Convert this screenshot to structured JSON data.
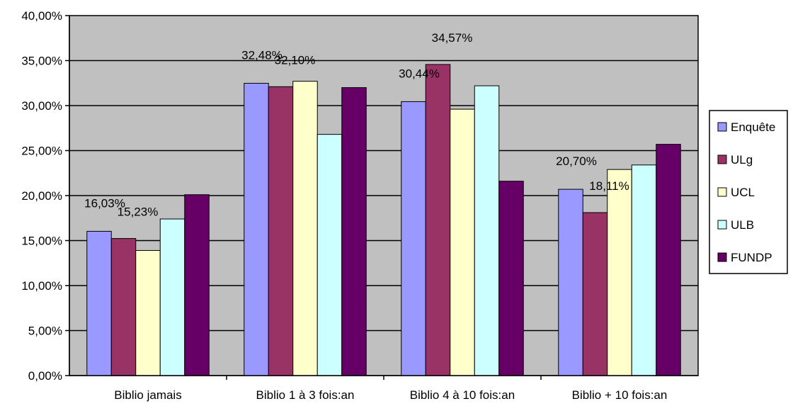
{
  "chart_data": {
    "type": "bar",
    "categories": [
      "Biblio jamais",
      "Biblio 1 à 3 fois:an",
      "Biblio 4 à 10 fois:an",
      "Biblio + 10 fois:an"
    ],
    "series": [
      {
        "name": "Enquête",
        "color": "#9999ff",
        "values": [
          16.03,
          32.48,
          30.44,
          20.7
        ]
      },
      {
        "name": "ULg",
        "color": "#993366",
        "values": [
          15.23,
          32.1,
          34.57,
          18.11
        ]
      },
      {
        "name": "UCL",
        "color": "#ffffcc",
        "values": [
          13.9,
          32.7,
          29.6,
          22.9
        ]
      },
      {
        "name": "ULB",
        "color": "#ccffff",
        "values": [
          17.4,
          26.8,
          32.2,
          23.4
        ]
      },
      {
        "name": "FUNDP",
        "color": "#660066",
        "values": [
          20.1,
          32.0,
          21.6,
          25.7
        ]
      }
    ],
    "data_labels": [
      {
        "series": "Enquête",
        "category": "Biblio jamais",
        "text": "16,03%"
      },
      {
        "series": "ULg",
        "category": "Biblio jamais",
        "text": "15,23%"
      },
      {
        "series": "Enquête",
        "category": "Biblio 1 à 3 fois:an",
        "text": "32,48%"
      },
      {
        "series": "ULg",
        "category": "Biblio 1 à 3 fois:an",
        "text": "32,10%"
      },
      {
        "series": "Enquête",
        "category": "Biblio 4 à 10 fois:an",
        "text": "30,44%"
      },
      {
        "series": "ULg",
        "category": "Biblio 4 à 10 fois:an",
        "text": "34,57%"
      },
      {
        "series": "Enquête",
        "category": "Biblio + 10 fois:an",
        "text": "20,70%"
      },
      {
        "series": "ULg",
        "category": "Biblio + 10 fois:an",
        "text": "18,11%"
      }
    ],
    "y_ticks": [
      "0,00%",
      "5,00%",
      "10,00%",
      "15,00%",
      "20,00%",
      "25,00%",
      "30,00%",
      "35,00%",
      "40,00%"
    ],
    "ylim": [
      0,
      40
    ],
    "y_step": 5,
    "grid": true,
    "legend": "right",
    "plot_background": "#c0c0c0",
    "title": "",
    "xlabel": "",
    "ylabel": ""
  }
}
